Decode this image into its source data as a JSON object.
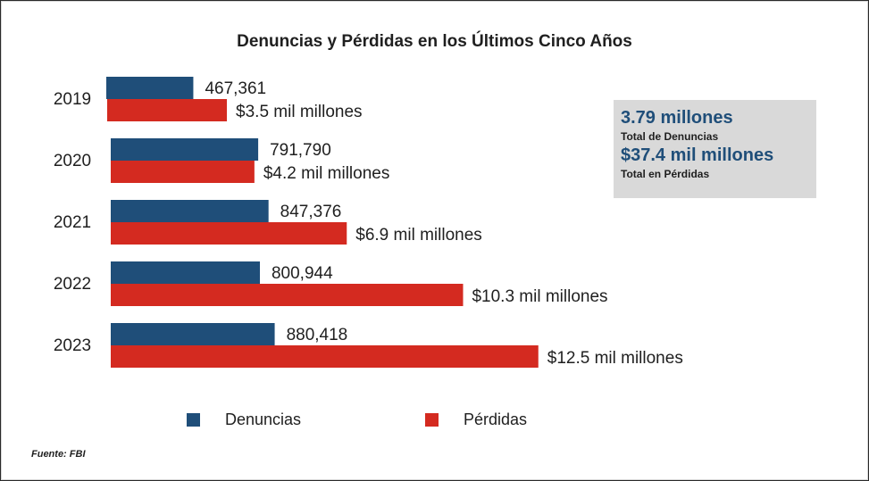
{
  "colors": {
    "denuncias": "#1f4e79",
    "perdidas": "#d42a20"
  },
  "summary": {
    "total_complaints": "3.79 millones",
    "total_complaints_label": "Total de Denuncias",
    "total_losses": "$37.4 mil millones",
    "total_losses_label": "Total en Pérdidas"
  },
  "legend": {
    "denuncias": "Denuncias",
    "perdidas": "Pérdidas"
  },
  "source": "Fuente: FBI",
  "chart_data": {
    "type": "bar",
    "orientation": "horizontal",
    "title": "Denuncias y Pérdidas en los Últimos Cinco Años",
    "categories": [
      "2019",
      "2020",
      "2021",
      "2022",
      "2023"
    ],
    "series": [
      {
        "name": "Denuncias",
        "values": [
          467361,
          791790,
          847376,
          800944,
          880418
        ],
        "labels": [
          "467,361",
          "791,790",
          "847,376",
          "800,944",
          "880,418"
        ]
      },
      {
        "name": "Pérdidas",
        "values": [
          3.5,
          4.2,
          6.9,
          10.3,
          12.5
        ],
        "unit": "mil millones USD",
        "labels": [
          "$3.5 mil millones",
          "$4.2 mil millones",
          "$6.9 mil millones",
          "$10.3 mil millones",
          "$12.5 mil millones"
        ]
      }
    ],
    "xlabel": "",
    "ylabel": "",
    "grid": false,
    "legend_position": "bottom"
  }
}
